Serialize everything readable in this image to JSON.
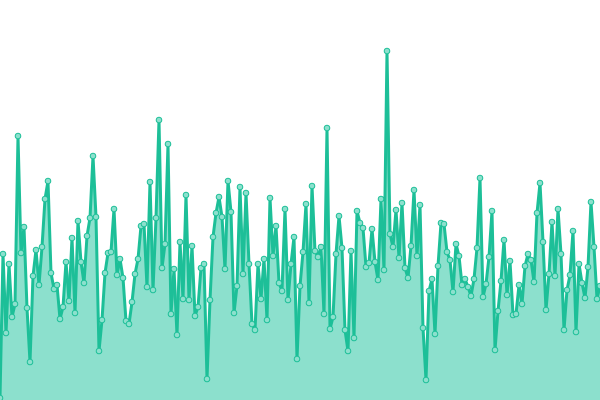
{
  "chart_data": {
    "type": "area",
    "title": "",
    "xlabel": "",
    "ylabel": "",
    "ylim": [
      0,
      400
    ],
    "x_start": 0,
    "x_end": 200,
    "grid": false,
    "legend": "none",
    "colors": {
      "line": "#1dbf98",
      "fill": "#8ce0cd",
      "marker_fill": "#8ce0cd",
      "marker_stroke": "#1dbf98"
    },
    "series": [
      {
        "values": [
          2,
          146,
          67,
          136,
          83,
          96,
          264,
          147,
          173,
          92,
          38,
          124,
          150,
          115,
          153,
          201,
          219,
          127,
          111,
          115,
          81,
          93,
          138,
          99,
          162,
          87,
          179,
          138,
          117,
          164,
          182,
          244,
          183,
          49,
          80,
          127,
          147,
          148,
          191,
          125,
          141,
          122,
          79,
          76,
          98,
          126,
          141,
          174,
          176,
          113,
          218,
          110,
          182,
          280,
          132,
          156,
          256,
          86,
          131,
          65,
          158,
          101,
          205,
          100,
          154,
          84,
          93,
          132,
          136,
          21,
          100,
          163,
          187,
          203,
          183,
          131,
          219,
          188,
          87,
          114,
          213,
          126,
          207,
          136,
          76,
          70,
          136,
          101,
          141,
          80,
          202,
          144,
          174,
          117,
          109,
          191,
          100,
          136,
          163,
          41,
          114,
          148,
          196,
          97,
          214,
          149,
          143,
          153,
          86,
          272,
          71,
          83,
          146,
          184,
          152,
          70,
          49,
          149,
          62,
          189,
          177,
          172,
          133,
          137,
          171,
          138,
          120,
          201,
          130,
          349,
          166,
          153,
          190,
          142,
          197,
          132,
          122,
          154,
          210,
          144,
          195,
          72,
          20,
          109,
          121,
          66,
          134,
          177,
          176,
          148,
          140,
          108,
          156,
          144,
          115,
          121,
          113,
          104,
          121,
          152,
          222,
          103,
          116,
          143,
          189,
          50,
          89,
          119,
          160,
          105,
          139,
          85,
          86,
          115,
          96,
          134,
          146,
          140,
          118,
          187,
          217,
          158,
          90,
          126,
          178,
          124,
          191,
          146,
          70,
          110,
          125,
          169,
          68,
          136,
          117,
          102,
          133,
          198,
          153,
          101,
          114
        ]
      }
    ]
  }
}
